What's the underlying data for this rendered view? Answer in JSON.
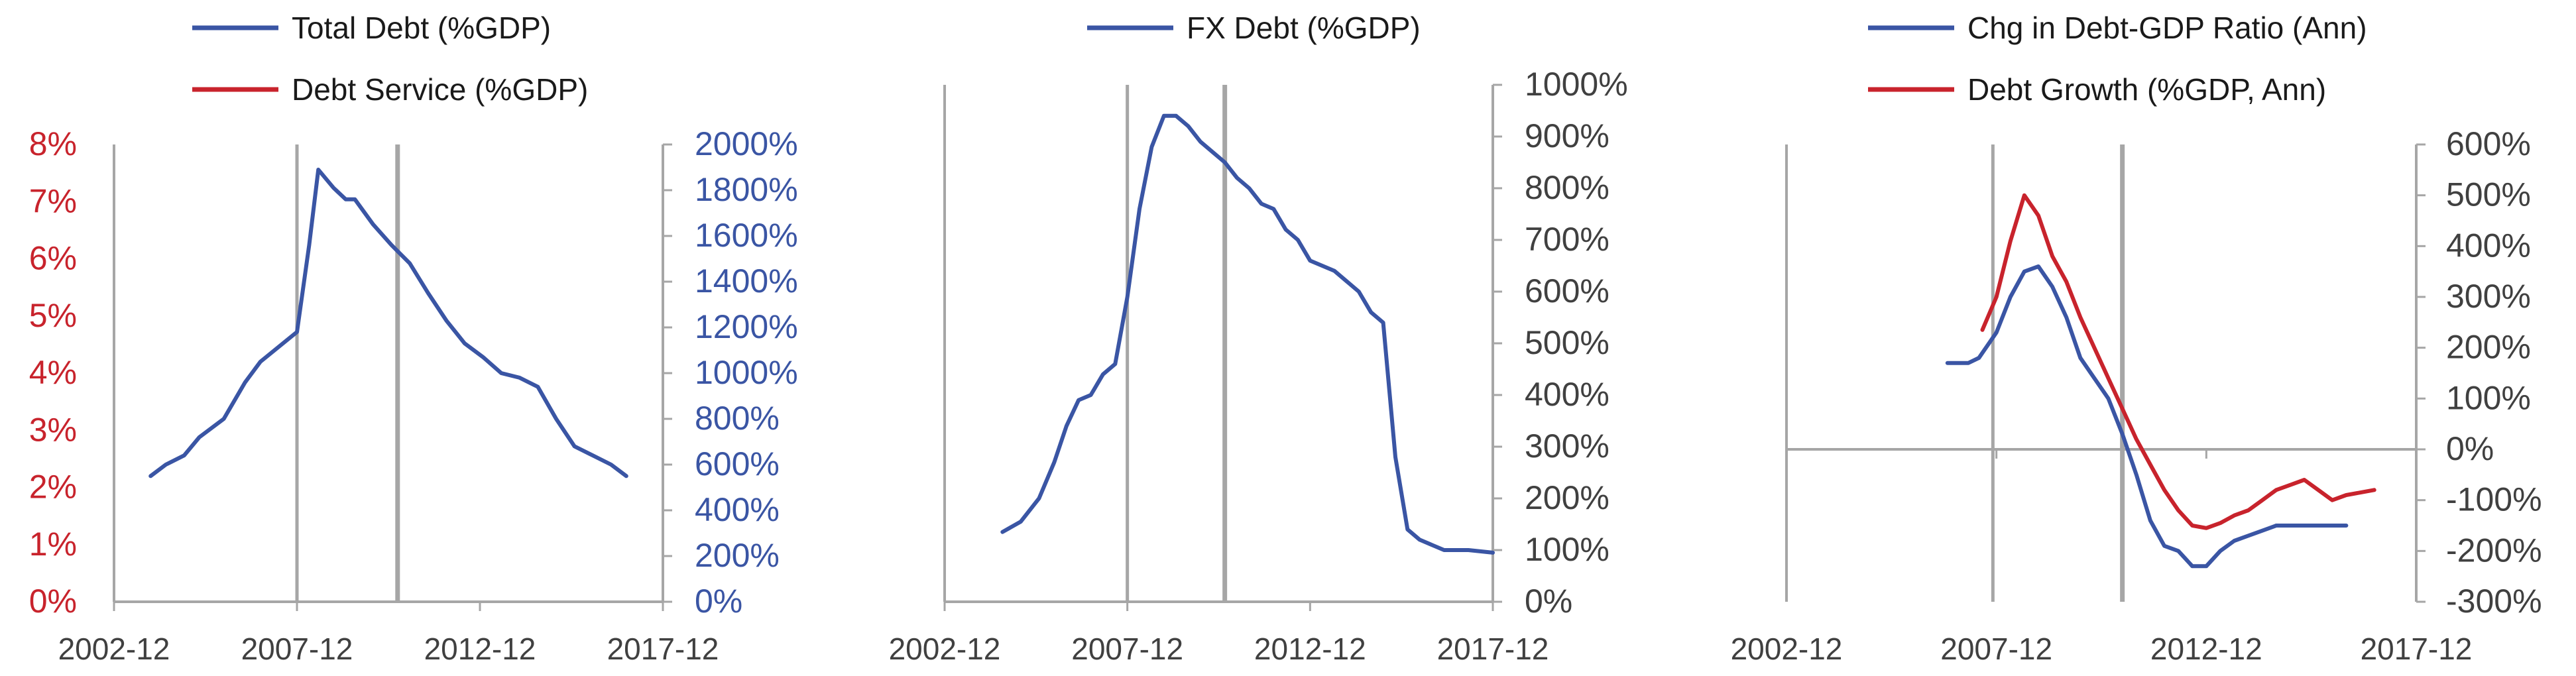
{
  "colors": {
    "blue": "#3a55a4",
    "red": "#c8232c",
    "axis_gray": "#a6a6a6",
    "event_line_gray": "#a6a6a6",
    "tick_text_dark": "#404040"
  },
  "chart_data": [
    {
      "type": "line",
      "x_axis": {
        "min": 2002.917,
        "max": 2017.917,
        "ticks": [
          2002.917,
          2007.917,
          2012.917,
          2017.917
        ],
        "tick_labels": [
          "2002-12",
          "2007-12",
          "2012-12",
          "2017-12"
        ]
      },
      "y_left": {
        "min": 0,
        "max": 8,
        "ticks": [
          0,
          1,
          2,
          3,
          4,
          5,
          6,
          7,
          8
        ],
        "tick_labels": [
          "0%",
          "1%",
          "2%",
          "3%",
          "4%",
          "5%",
          "6%",
          "7%",
          "8%"
        ]
      },
      "y_right": {
        "min": 0,
        "max": 2000,
        "ticks": [
          0,
          200,
          400,
          600,
          800,
          1000,
          1200,
          1400,
          1600,
          1800,
          2000
        ],
        "tick_labels": [
          "0%",
          "200%",
          "400%",
          "600%",
          "800%",
          "1000%",
          "1200%",
          "1400%",
          "1600%",
          "1800%",
          "2000%"
        ]
      },
      "event_lines": [
        2007.917,
        2010.667
      ],
      "legend": [
        "Total Debt (%GDP)",
        "Debt Service (%GDP)"
      ],
      "series": [
        {
          "name": "Total Debt (%GDP)",
          "axis": "right",
          "color": "blue",
          "x": [
            2003.917,
            2004.333,
            2004.833,
            2005.25,
            2005.917,
            2006.5,
            2006.917,
            2007.917,
            2008.25,
            2008.5,
            2008.917,
            2009.25,
            2009.5,
            2010.0,
            2010.5,
            2011.0,
            2011.5,
            2012.0,
            2012.5,
            2013.0,
            2013.5,
            2014.0,
            2014.5,
            2015.0,
            2015.5,
            2016.0,
            2016.5,
            2016.917
          ],
          "values": [
            550,
            600,
            640,
            720,
            800,
            960,
            1050,
            1180,
            1560,
            1890,
            1810,
            1760,
            1760,
            1650,
            1560,
            1480,
            1350,
            1230,
            1130,
            1070,
            1000,
            980,
            940,
            800,
            680,
            640,
            600,
            550
          ]
        },
        {
          "name": "Debt Service (%GDP)",
          "axis": "left",
          "color": "red",
          "x": [],
          "values": []
        }
      ]
    },
    {
      "type": "line",
      "x_axis": {
        "min": 2002.917,
        "max": 2017.917,
        "ticks": [
          2002.917,
          2007.917,
          2012.917,
          2017.917
        ],
        "tick_labels": [
          "2002-12",
          "2007-12",
          "2012-12",
          "2017-12"
        ]
      },
      "y_left": null,
      "y_right": {
        "min": 0,
        "max": 1000,
        "ticks": [
          0,
          100,
          200,
          300,
          400,
          500,
          600,
          700,
          800,
          900,
          1000
        ],
        "tick_labels": [
          "0%",
          "100%",
          "200%",
          "300%",
          "400%",
          "500%",
          "600%",
          "700%",
          "800%",
          "900%",
          "1000%"
        ]
      },
      "event_lines": [
        2007.917,
        2010.583
      ],
      "legend": [
        "FX Debt (%GDP)"
      ],
      "series": [
        {
          "name": "FX Debt (%GDP)",
          "axis": "right",
          "color": "blue",
          "x": [
            2004.5,
            2005.0,
            2005.5,
            2005.917,
            2006.25,
            2006.583,
            2006.917,
            2007.25,
            2007.583,
            2007.917,
            2008.25,
            2008.583,
            2008.917,
            2009.25,
            2009.583,
            2009.917,
            2010.25,
            2010.583,
            2010.917,
            2011.25,
            2011.583,
            2011.917,
            2012.25,
            2012.583,
            2012.917,
            2013.25,
            2013.583,
            2013.917,
            2014.25,
            2014.583,
            2014.917,
            2015.25,
            2015.583,
            2015.917,
            2016.25,
            2016.583,
            2016.917,
            2017.25,
            2017.917
          ],
          "values": [
            135,
            155,
            200,
            270,
            340,
            390,
            400,
            440,
            460,
            590,
            760,
            880,
            940,
            940,
            920,
            890,
            870,
            850,
            820,
            800,
            770,
            760,
            720,
            700,
            660,
            650,
            640,
            620,
            600,
            560,
            540,
            280,
            140,
            120,
            110,
            100,
            100,
            100,
            95
          ]
        }
      ]
    },
    {
      "type": "line",
      "x_axis": {
        "min": 2002.917,
        "max": 2017.917,
        "ticks": [
          2002.917,
          2007.917,
          2012.917,
          2017.917
        ],
        "tick_labels": [
          "2002-12",
          "2007-12",
          "2012-12",
          "2017-12"
        ]
      },
      "y_left": null,
      "y_right": {
        "min": -300,
        "max": 600,
        "ticks": [
          -300,
          -200,
          -100,
          0,
          100,
          200,
          300,
          400,
          500,
          600
        ],
        "tick_labels": [
          "-300%",
          "-200%",
          "-100%",
          "0%",
          "100%",
          "200%",
          "300%",
          "400%",
          "500%",
          "600%"
        ]
      },
      "event_lines": [
        2007.833,
        2010.917
      ],
      "legend": [
        "Chg in Debt-GDP Ratio (Ann)",
        "Debt Growth (%GDP, Ann)"
      ],
      "series": [
        {
          "name": "Chg in Debt-GDP Ratio (Ann)",
          "axis": "right",
          "color": "blue",
          "x": [
            2006.75,
            2007.0,
            2007.25,
            2007.5,
            2007.917,
            2008.25,
            2008.583,
            2008.917,
            2009.25,
            2009.583,
            2009.917,
            2010.25,
            2010.583,
            2010.917,
            2011.25,
            2011.583,
            2011.917,
            2012.25,
            2012.583,
            2012.917,
            2013.25,
            2013.583,
            2013.917,
            2014.25,
            2014.583,
            2014.917,
            2015.25,
            2015.583,
            2015.917,
            2016.25
          ],
          "values": [
            170,
            170,
            170,
            180,
            230,
            300,
            350,
            360,
            320,
            260,
            180,
            140,
            100,
            30,
            -50,
            -140,
            -190,
            -200,
            -230,
            -230,
            -200,
            -180,
            -170,
            -160,
            -150,
            -150,
            -150,
            -150,
            -150,
            -150
          ]
        },
        {
          "name": "Debt Growth (%GDP, Ann)",
          "axis": "right",
          "color": "red",
          "x": [
            2007.583,
            2007.917,
            2008.25,
            2008.583,
            2008.917,
            2009.25,
            2009.583,
            2009.917,
            2010.25,
            2010.583,
            2010.917,
            2011.25,
            2011.583,
            2011.917,
            2012.25,
            2012.583,
            2012.917,
            2013.25,
            2013.583,
            2013.917,
            2014.25,
            2014.583,
            2014.917,
            2015.25,
            2015.583,
            2015.917,
            2016.25,
            2016.583,
            2016.917
          ],
          "values": [
            235,
            300,
            410,
            500,
            460,
            380,
            330,
            260,
            200,
            140,
            80,
            20,
            -30,
            -80,
            -120,
            -150,
            -155,
            -145,
            -130,
            -120,
            -100,
            -80,
            -70,
            -60,
            -80,
            -100,
            -90,
            -85,
            -80
          ]
        }
      ]
    }
  ]
}
